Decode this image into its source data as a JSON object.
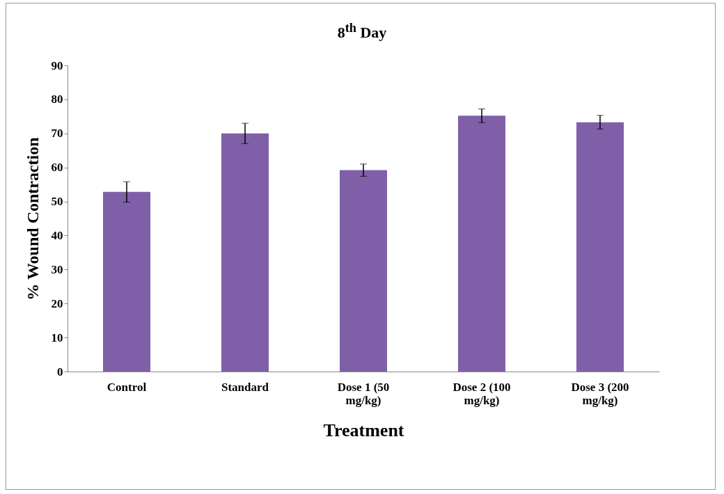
{
  "chart_data": {
    "type": "bar",
    "title": "8$^{th}$ Day",
    "xlabel": "Treatment",
    "ylabel": "% Wound Contraction",
    "categories": [
      "Control",
      "Standard",
      "Dose 1 (50 mg/kg)",
      "Dose 2 (100 mg/kg)",
      "Dose 3 (200 mg/kg)"
    ],
    "values": [
      52.8,
      70,
      59.2,
      75.2,
      73.3
    ],
    "errors": [
      3,
      3,
      1.8,
      2,
      2
    ],
    "color": "#7f60a8",
    "ylim": [
      0,
      90
    ],
    "yticks": [
      0,
      10,
      20,
      30,
      40,
      50,
      60,
      70,
      80,
      90
    ],
    "grid": false
  }
}
